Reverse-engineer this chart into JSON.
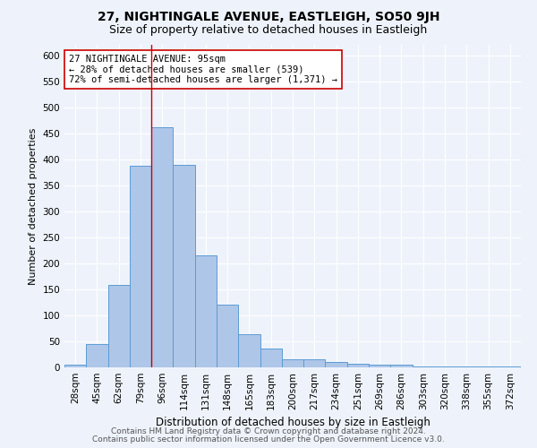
{
  "title1": "27, NIGHTINGALE AVENUE, EASTLEIGH, SO50 9JH",
  "title2": "Size of property relative to detached houses in Eastleigh",
  "xlabel": "Distribution of detached houses by size in Eastleigh",
  "ylabel": "Number of detached properties",
  "categories": [
    "28sqm",
    "45sqm",
    "62sqm",
    "79sqm",
    "96sqm",
    "114sqm",
    "131sqm",
    "148sqm",
    "165sqm",
    "183sqm",
    "200sqm",
    "217sqm",
    "234sqm",
    "251sqm",
    "269sqm",
    "286sqm",
    "303sqm",
    "320sqm",
    "338sqm",
    "355sqm",
    "372sqm"
  ],
  "values": [
    5,
    45,
    158,
    388,
    462,
    390,
    215,
    120,
    63,
    37,
    16,
    16,
    10,
    7,
    5,
    5,
    2,
    2,
    2,
    2,
    2
  ],
  "bar_color": "#aec6e8",
  "bar_edge_color": "#5b9bd5",
  "property_bar_index": 4,
  "vline_color": "#cc0000",
  "annotation_text": "27 NIGHTINGALE AVENUE: 95sqm\n← 28% of detached houses are smaller (539)\n72% of semi-detached houses are larger (1,371) →",
  "annotation_box_color": "#ffffff",
  "annotation_box_edge": "#cc0000",
  "footer1": "Contains HM Land Registry data © Crown copyright and database right 2024.",
  "footer2": "Contains public sector information licensed under the Open Government Licence v3.0.",
  "bg_color": "#eef3fb",
  "plot_bg_color": "#eef3fb",
  "grid_color": "#ffffff",
  "ylim": [
    0,
    620
  ],
  "title1_fontsize": 10,
  "title2_fontsize": 9,
  "xlabel_fontsize": 8.5,
  "ylabel_fontsize": 8,
  "tick_fontsize": 7.5,
  "annotation_fontsize": 7.5,
  "footer_fontsize": 6.5
}
